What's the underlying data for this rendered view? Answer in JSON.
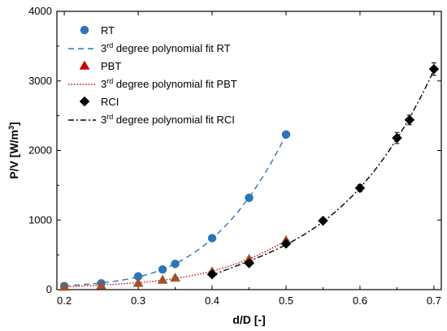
{
  "chart_data": {
    "type": "scatter",
    "title": "",
    "xlabel": "d/D [-]",
    "ylabel_main": "P/V [W/m",
    "ylabel_sup": "3",
    "ylabel_end": "]",
    "xlim": [
      0.19,
      0.71
    ],
    "ylim": [
      0,
      4000
    ],
    "xticks": [
      "0.2",
      "0.3",
      "0.4",
      "0.5",
      "0.6",
      "0.7"
    ],
    "yticks": [
      "0",
      "1000",
      "2000",
      "3000",
      "4000"
    ],
    "legend_position": "top-left",
    "legend_fit_sup": "rd",
    "series": [
      {
        "name": "RT",
        "fit_name_prefix": "3",
        "fit_name_suffix": " degree polynomial fit RT",
        "marker": "circle",
        "color": "#2e75b6",
        "fit_color": "#2e75b6",
        "fit_dash": "7,5",
        "x": [
          0.2,
          0.25,
          0.3,
          0.333,
          0.35,
          0.4,
          0.45,
          0.5
        ],
        "y": [
          50,
          90,
          190,
          290,
          370,
          740,
          1320,
          2230
        ],
        "fit": [
          0.2,
          0.5
        ]
      },
      {
        "name": "PBT",
        "fit_name_prefix": "3",
        "fit_name_suffix": " degree polynomial fit PBT",
        "marker": "triangle",
        "color": "#cc0000",
        "point_fill": "#a0522d",
        "fit_color": "#cc0000",
        "fit_dash": "1.5,2",
        "x": [
          0.2,
          0.25,
          0.3,
          0.333,
          0.35,
          0.4,
          0.45,
          0.5
        ],
        "y": [
          40,
          60,
          95,
          140,
          170,
          260,
          440,
          710
        ],
        "fit": [
          0.2,
          0.5
        ]
      },
      {
        "name": "RCI",
        "fit_name_prefix": "3",
        "fit_name_suffix": " degree polynomial fit RCI",
        "marker": "diamond",
        "color": "#000000",
        "fit_color": "#000000",
        "fit_dash": "7,3,2,3",
        "x": [
          0.4,
          0.45,
          0.5,
          0.55,
          0.6,
          0.65,
          0.667,
          0.7
        ],
        "y": [
          220,
          380,
          660,
          990,
          1460,
          2180,
          2440,
          3170
        ],
        "err": [
          0,
          0,
          0,
          0,
          50,
          80,
          70,
          90
        ],
        "fit": [
          0.4,
          0.7
        ]
      }
    ]
  }
}
